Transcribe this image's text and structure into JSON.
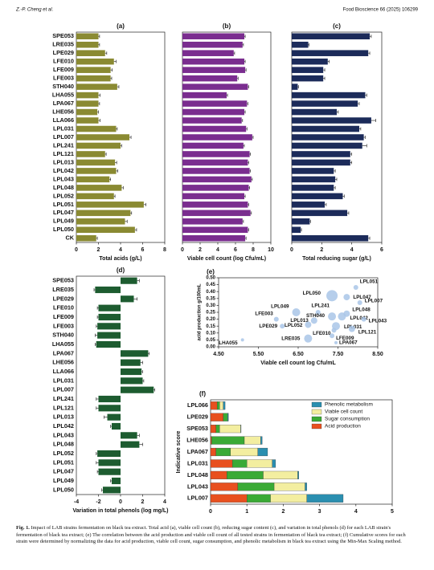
{
  "header": {
    "author": "Z.-P. Cheng et al.",
    "journal": "Food Bioscience 66 (2025) 106299"
  },
  "chart_data": [
    {
      "type": "hbar",
      "panel": "(a)",
      "xlabel": "Total acids (g/L)",
      "color": "#8a8a32",
      "categories": [
        "SPE053",
        "LRE035",
        "LPE029",
        "LFE010",
        "LFE009",
        "LFE003",
        "STH040",
        "LHA055",
        "LPA067",
        "LHE056",
        "LLA066",
        "LPL031",
        "LPL007",
        "LPL241",
        "LPL121",
        "LPL013",
        "LPL042",
        "LPL043",
        "LPL048",
        "LPL052",
        "LPL051",
        "LPL047",
        "LPL049",
        "LPL050",
        "CK"
      ],
      "values": [
        2.0,
        2.0,
        2.6,
        3.4,
        3.1,
        3.1,
        3.7,
        2.0,
        2.0,
        1.9,
        2.0,
        3.6,
        4.8,
        4.0,
        2.6,
        3.5,
        3.6,
        3.0,
        4.1,
        3.4,
        6.1,
        4.9,
        4.4,
        5.3,
        1.8
      ],
      "errors": [
        0.1,
        0.1,
        0.15,
        0.2,
        0.15,
        0.1,
        0.15,
        0.15,
        0.1,
        0.1,
        0.15,
        0.1,
        0.15,
        0.1,
        0.1,
        0.15,
        0.15,
        0.1,
        0.15,
        0.1,
        0.2,
        0.1,
        0.2,
        0.15,
        0.1
      ],
      "xlim": [
        0,
        8
      ],
      "xticks": [
        0,
        2,
        4,
        6,
        8
      ]
    },
    {
      "type": "hbar",
      "panel": "(b)",
      "xlabel": "Viable cell count (log Cfu/mL)",
      "color": "#7a2d8f",
      "values": [
        7.0,
        6.8,
        5.8,
        7.0,
        7.1,
        6.2,
        7.4,
        5.0,
        7.3,
        7.0,
        6.7,
        7.2,
        7.9,
        6.9,
        7.6,
        7.4,
        7.6,
        7.8,
        7.5,
        7.0,
        7.4,
        7.7,
        6.8,
        7.4,
        7.1
      ],
      "errors": [
        0.1,
        0.1,
        0.1,
        0.1,
        0.1,
        0.1,
        0.1,
        0.1,
        0.1,
        0.1,
        0.1,
        0.1,
        0.1,
        0.1,
        0.1,
        0.1,
        0.1,
        0.1,
        0.1,
        0.1,
        0.1,
        0.1,
        0.1,
        0.1,
        0.1
      ],
      "xlim": [
        0,
        10
      ],
      "xticks": [
        0,
        2,
        4,
        6,
        8,
        10
      ]
    },
    {
      "type": "hbar",
      "panel": "(c)",
      "xlabel": "Total reducing sugar (g/L)",
      "color": "#1c2b5a",
      "values": [
        5.2,
        1.1,
        5.1,
        2.4,
        2.1,
        2.1,
        0.4,
        4.9,
        4.4,
        3.0,
        5.3,
        4.5,
        4.8,
        4.7,
        3.9,
        3.9,
        2.8,
        2.9,
        2.8,
        3.4,
        2.2,
        3.7,
        1.2,
        0.6,
        5.1
      ],
      "errors": [
        0.1,
        0.05,
        0.1,
        0.1,
        0.1,
        0.1,
        0.05,
        0.1,
        0.1,
        0.1,
        0.3,
        0.1,
        0.1,
        0.3,
        0.1,
        0.1,
        0.1,
        0.1,
        0.1,
        0.1,
        0.1,
        0.1,
        0.05,
        0.05,
        0.1
      ],
      "xlim": [
        0,
        6
      ],
      "xticks": [
        0,
        2,
        4,
        6
      ]
    },
    {
      "type": "hbar",
      "panel": "(d)",
      "xlabel": "Variation in total phenols (log mg/L)",
      "color": "#1d5c30",
      "categories": [
        "SPE053",
        "LRE035",
        "LPE029",
        "LFE010",
        "LFE009",
        "LFE003",
        "STH040",
        "LHA055",
        "LPA067",
        "LHE056",
        "LLA066",
        "LPL031",
        "LPL007",
        "LPL241",
        "LPL121",
        "LPL013",
        "LPL042",
        "LPL043",
        "LPL048",
        "LPL052",
        "LPL051",
        "LPL047",
        "LPL049",
        "LPL050"
      ],
      "values": [
        1.5,
        -2.3,
        1.2,
        -2.0,
        -2.0,
        -2.1,
        -2.1,
        -2.2,
        2.5,
        1.8,
        1.9,
        2.0,
        3.0,
        -2.0,
        -2.0,
        -1.2,
        -0.8,
        1.5,
        1.7,
        -2.1,
        -2.0,
        -2.0,
        -0.8,
        -1.6
      ],
      "errors": [
        0.2,
        0.1,
        0.3,
        0.1,
        0.1,
        0.1,
        0.2,
        0.1,
        0.1,
        0.2,
        0.1,
        0.1,
        0.1,
        0.2,
        0.2,
        0.3,
        0.1,
        0.2,
        0.3,
        0.1,
        0.2,
        0.1,
        0.1,
        0.1
      ],
      "xlim": [
        -4,
        4
      ],
      "xticks": [
        -4,
        -2,
        0,
        2,
        4
      ]
    },
    {
      "type": "scatter",
      "panel": "(e)",
      "xlabel": "Viable cell count log Cfu/mL",
      "ylabel": "acid production g/100mL",
      "color": "#a9c6e8",
      "labels": [
        "LPL051",
        "LPL050",
        "LPL047",
        "LPL007",
        "LPL049",
        "LPL241",
        "LPL048",
        "STH040",
        "LPL042",
        "LFE003",
        "LPL013",
        "LPL043",
        "LPL031",
        "LPL052",
        "LPE029",
        "LFE010",
        "LPL121",
        "LRE035",
        "LFE009",
        "LPA067",
        "LHA055"
      ],
      "x": [
        7.95,
        7.35,
        7.72,
        8.05,
        6.45,
        7.0,
        7.72,
        7.35,
        7.6,
        5.95,
        6.9,
        8.15,
        7.45,
        6.75,
        6.1,
        7.4,
        7.85,
        6.75,
        7.35,
        7.45,
        5.1
      ],
      "y": [
        0.43,
        0.37,
        0.36,
        0.32,
        0.25,
        0.25,
        0.24,
        0.22,
        0.22,
        0.2,
        0.19,
        0.2,
        0.15,
        0.16,
        0.15,
        0.12,
        0.13,
        0.06,
        0.08,
        0.03,
        0.05
      ],
      "size": [
        3,
        7,
        4,
        3,
        5,
        3,
        4,
        5,
        5,
        3,
        4,
        3,
        5,
        4,
        3,
        3,
        4,
        5,
        3,
        2,
        2
      ],
      "xlim": [
        4.5,
        8.5
      ],
      "xticks": [
        {
          "value": 4.5,
          "label": "4.50"
        },
        {
          "value": 5.5,
          "label": "5.50"
        },
        {
          "value": 6.5,
          "label": "6.50"
        },
        {
          "value": 7.5,
          "label": "7.50"
        },
        {
          "value": 8.5,
          "label": "8.50"
        }
      ],
      "ylim": [
        0,
        0.5
      ],
      "yticks": [
        {
          "value": 0,
          "label": "0.00"
        },
        {
          "value": 0.05,
          "label": "0.05"
        },
        {
          "value": 0.1,
          "label": "0.10"
        },
        {
          "value": 0.15,
          "label": "0.15"
        },
        {
          "value": 0.2,
          "label": "0.20"
        },
        {
          "value": 0.25,
          "label": "0.25"
        },
        {
          "value": 0.3,
          "label": "0.30"
        },
        {
          "value": 0.35,
          "label": "0.35"
        },
        {
          "value": 0.4,
          "label": "0.40"
        },
        {
          "value": 0.45,
          "label": "0.45"
        },
        {
          "value": 0.5,
          "label": "0.50"
        }
      ]
    },
    {
      "type": "stacked_hbar",
      "panel": "(f)",
      "ylabel": "Indicative score",
      "legend": "upper right",
      "categories": [
        "LPL066",
        "LPE029",
        "SPE053",
        "LHE056",
        "LPA067",
        "LPL031",
        "LPL048",
        "LPL043",
        "LPL007"
      ],
      "series": [
        {
          "name": "Acid production",
          "color": "#e8501f",
          "values": [
            0.18,
            0.35,
            0.15,
            0.03,
            0.15,
            0.6,
            0.45,
            0.75,
            1.0
          ]
        },
        {
          "name": "Sugar consumption",
          "color": "#3aaa35",
          "values": [
            0.07,
            0.12,
            0.1,
            0.9,
            0.4,
            0.4,
            1.0,
            1.0,
            0.65
          ]
        },
        {
          "name": "Viable cell count",
          "color": "#f3eea0",
          "values": [
            0.1,
            0,
            0.58,
            0.45,
            0.75,
            0.7,
            0.95,
            0.85,
            1.0
          ]
        },
        {
          "name": "Phenolic metabolism",
          "color": "#2a8fb0",
          "values": [
            0.05,
            0.02,
            0.01,
            0.04,
            0.27,
            0.09,
            0.03,
            0.05,
            1.0
          ]
        }
      ],
      "xlim": [
        0,
        5
      ],
      "xticks": [
        0,
        1,
        2,
        3,
        4,
        5
      ]
    }
  ],
  "caption": {
    "label": "Fig. 1.",
    "text": "Impact of LAB strains fermentation on black tea extract. Total acid (a), viable cell count (b), reducing sugar content (c), and variation in total phenols (d) for each LAB strain's fermentation of black tea extract; (e) The correlation between the acid production and viable cell count of all tested strains in fermentation of black tea extract; (f) Cumulative scores for each strain were determined by normalizing the data for acid production, viable cell count, sugar consumption, and phenolic metabolism in black tea extract using the Min-Max Scaling method."
  }
}
